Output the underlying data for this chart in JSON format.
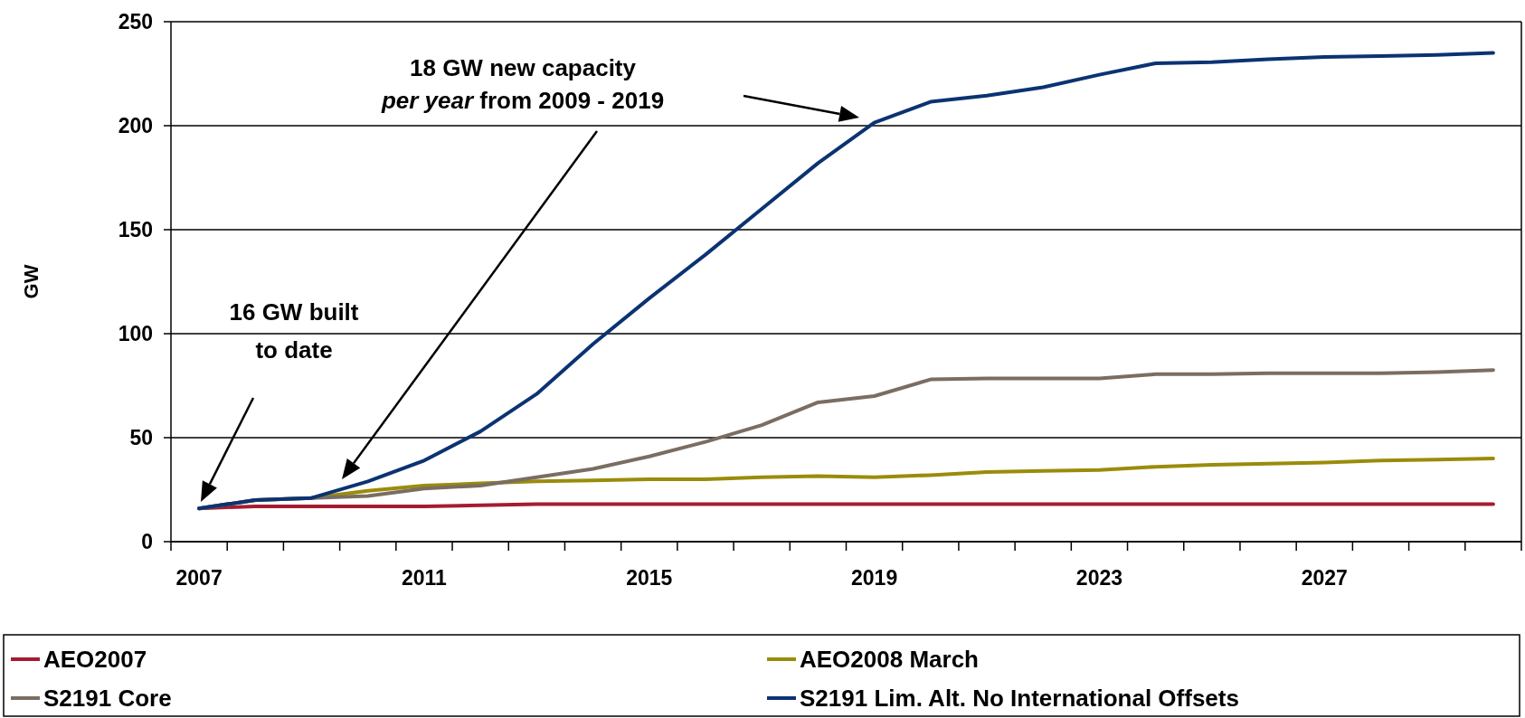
{
  "chart_data": {
    "type": "line",
    "ylabel": "GW",
    "categories": [
      "2007",
      null,
      null,
      null,
      "2011",
      null,
      null,
      null,
      "2015",
      null,
      null,
      null,
      "2019",
      null,
      null,
      null,
      "2023",
      null,
      null,
      null,
      "2027",
      null,
      null,
      null
    ],
    "series": [
      {
        "name": "AEO2007",
        "color": "#a51c30",
        "values": [
          16,
          17,
          17,
          17,
          17,
          17.5,
          18,
          18,
          18,
          18,
          18,
          18,
          18,
          18,
          18,
          18,
          18,
          18,
          18,
          18,
          18,
          18,
          18,
          18
        ]
      },
      {
        "name": "AEO2008 March",
        "color": "#9a8c0a",
        "values": [
          16,
          20,
          21,
          24.5,
          27,
          28,
          29,
          29.5,
          30,
          30,
          31,
          31.5,
          31,
          32,
          33.5,
          34,
          34.5,
          36,
          37,
          37.5,
          38,
          39,
          39.5,
          40
        ]
      },
      {
        "name": "S2191 Core",
        "color": "#7a6d62",
        "values": [
          16,
          20,
          21,
          22,
          25.5,
          27,
          31,
          35,
          41,
          48,
          56,
          67,
          70,
          78,
          78.5,
          78.5,
          78.5,
          80.5,
          80.5,
          81,
          81,
          81,
          81.5,
          82.5
        ]
      },
      {
        "name": "S2191 Lim. Alt. No International Offsets",
        "color": "#0b3372",
        "values": [
          16,
          20,
          21,
          29,
          39,
          53,
          71,
          95,
          117,
          138,
          160,
          182,
          201.5,
          211.5,
          214.5,
          218.5,
          224.5,
          230,
          230.5,
          232,
          233,
          233.5,
          234,
          235
        ]
      }
    ],
    "ylim": [
      0,
      250
    ],
    "yticks": [
      0,
      50,
      100,
      150,
      200,
      250
    ],
    "grid": "y",
    "legend": "bottom",
    "annotations": [
      "16 GW built to date",
      "18 GW new capacity per year from 2009 - 2019"
    ]
  }
}
